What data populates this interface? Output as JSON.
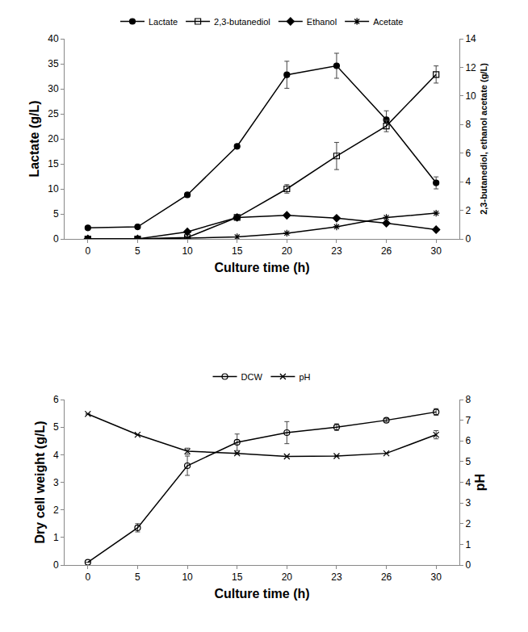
{
  "chart_data": [
    {
      "type": "line",
      "categories": [
        "0",
        "5",
        "10",
        "15",
        "20",
        "23",
        "26",
        "30"
      ],
      "xlabel": "Culture time (h)",
      "ylabel": "Lactate (g/L)",
      "y2label": "2,3-butanediol, ethanol acetate (g/L)",
      "ylim": [
        0,
        40
      ],
      "yticks": [
        0,
        5,
        10,
        15,
        20,
        25,
        30,
        35,
        40
      ],
      "y2lim": [
        0,
        14
      ],
      "y2ticks": [
        0,
        2,
        4,
        6,
        8,
        10,
        12,
        14
      ],
      "grid": false,
      "legend": "top",
      "series": [
        {
          "name": "Lactate",
          "color": "#000000",
          "marker": "circle",
          "line_style": "solid",
          "values": [
            2.2,
            2.4,
            8.8,
            18.5,
            32.8,
            34.6,
            23.8,
            11.2
          ],
          "error": [
            0,
            0,
            0.4,
            0.4,
            2.7,
            2.5,
            1.8,
            1.2
          ]
        },
        {
          "name": "2,3-butanediol",
          "color": "#000000",
          "marker": "square-open",
          "line_style": "solid",
          "axis": "y2",
          "values": [
            0,
            0,
            0.1,
            1.5,
            3.5,
            5.8,
            7.9,
            11.5
          ],
          "error": [
            0,
            0,
            0,
            0.1,
            0.3,
            0.95,
            0.4,
            0.6
          ]
        },
        {
          "name": "Ethanol",
          "color": "#000000",
          "marker": "diamond",
          "line_style": "solid",
          "axis": "y2",
          "values": [
            0,
            0,
            0.5,
            1.5,
            1.65,
            1.45,
            1.1,
            0.65
          ]
        },
        {
          "name": "Acetate",
          "color": "#000000",
          "marker": "asterisk-open",
          "line_style": "solid",
          "axis": "y2",
          "values": [
            0,
            0,
            0.05,
            0.14,
            0.4,
            0.85,
            1.5,
            1.8
          ]
        }
      ]
    },
    {
      "type": "line",
      "categories": [
        "0",
        "5",
        "10",
        "15",
        "20",
        "23",
        "26",
        "30"
      ],
      "xlabel": "Culture time (h)",
      "ylabel": "Dry cell weight (g/L)",
      "y2label": "pH",
      "ylim": [
        0,
        6
      ],
      "yticks": [
        0,
        1,
        2,
        3,
        4,
        5,
        6
      ],
      "y2lim": [
        0,
        8
      ],
      "y2ticks": [
        0,
        1,
        2,
        3,
        4,
        5,
        6,
        7,
        8
      ],
      "grid": false,
      "legend": "top",
      "series": [
        {
          "name": "DCW",
          "color": "#000000",
          "marker": "circle-open",
          "line_style": "solid",
          "values": [
            0.1,
            1.35,
            3.6,
            4.45,
            4.8,
            5.0,
            5.25,
            5.55
          ],
          "error": [
            0,
            0.15,
            0.35,
            0.3,
            0.4,
            0.12,
            0.06,
            0.12
          ]
        },
        {
          "name": "pH",
          "color": "#000000",
          "marker": "x-thin-open",
          "line_style": "solid",
          "axis": "y2",
          "values": [
            7.3,
            6.3,
            5.5,
            5.4,
            5.25,
            5.27,
            5.4,
            6.3
          ],
          "error": [
            0,
            0,
            0.15,
            0.05,
            0,
            0,
            0,
            0.2
          ]
        }
      ]
    }
  ]
}
